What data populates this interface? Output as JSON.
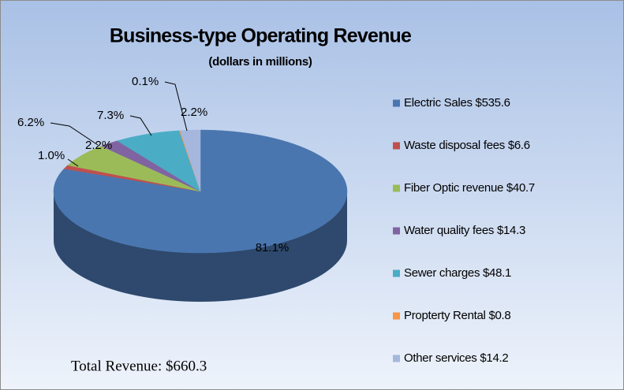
{
  "chart_data": {
    "type": "pie3d",
    "title": "Business-type Operating Revenue",
    "subtitle": "(dollars in millions)",
    "annotation": "Total Revenue: $660.3",
    "categories": [
      "Electric Sales $535.6",
      "Waste disposal fees $6.6",
      "Fiber Optic revenue $40.7",
      "Water quality fees $14.3",
      "Sewer charges $48.1",
      "Propterty Rental  $0.8",
      "Other services $14.2"
    ],
    "values": [
      81.1,
      1.0,
      6.2,
      2.2,
      7.3,
      0.1,
      2.2
    ],
    "value_labels": [
      "81.1%",
      "1.0%",
      "6.2%",
      "2.2%",
      "7.3%",
      "0.1%",
      "2.2%"
    ],
    "colors": [
      "#4a76b0",
      "#c0504d",
      "#9bbb59",
      "#8064a2",
      "#4bacc6",
      "#f79646",
      "#a5b7dd"
    ],
    "legend": "right"
  }
}
